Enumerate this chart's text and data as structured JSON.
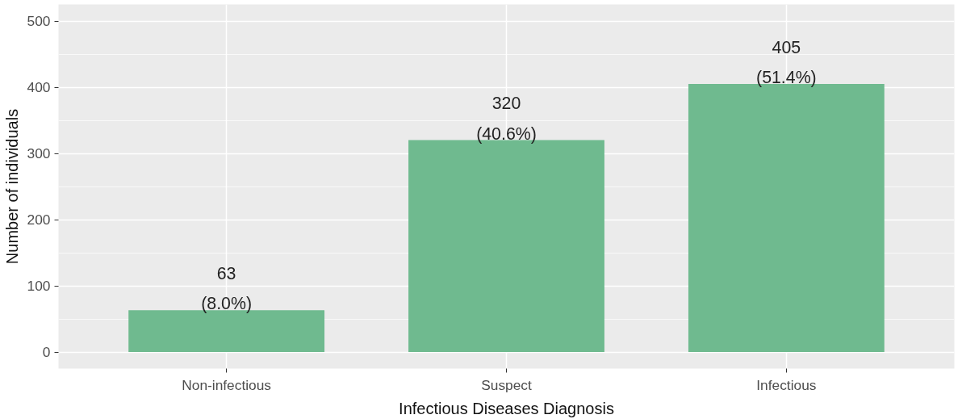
{
  "chart_data": {
    "type": "bar",
    "xlabel": "Infectious Diseases Diagnosis",
    "ylabel": "Number of individuals",
    "categories": [
      "Non-infectious",
      "Suspect",
      "Infectious"
    ],
    "values": [
      63,
      320,
      405
    ],
    "value_labels": [
      "63\n(8.0%)",
      "320\n(40.6%)",
      "405\n(51.4%)"
    ],
    "color": "#6fba8f",
    "ylim": [
      -25,
      525
    ],
    "yticks": [
      0,
      100,
      200,
      300,
      400,
      500
    ],
    "grid": true
  }
}
